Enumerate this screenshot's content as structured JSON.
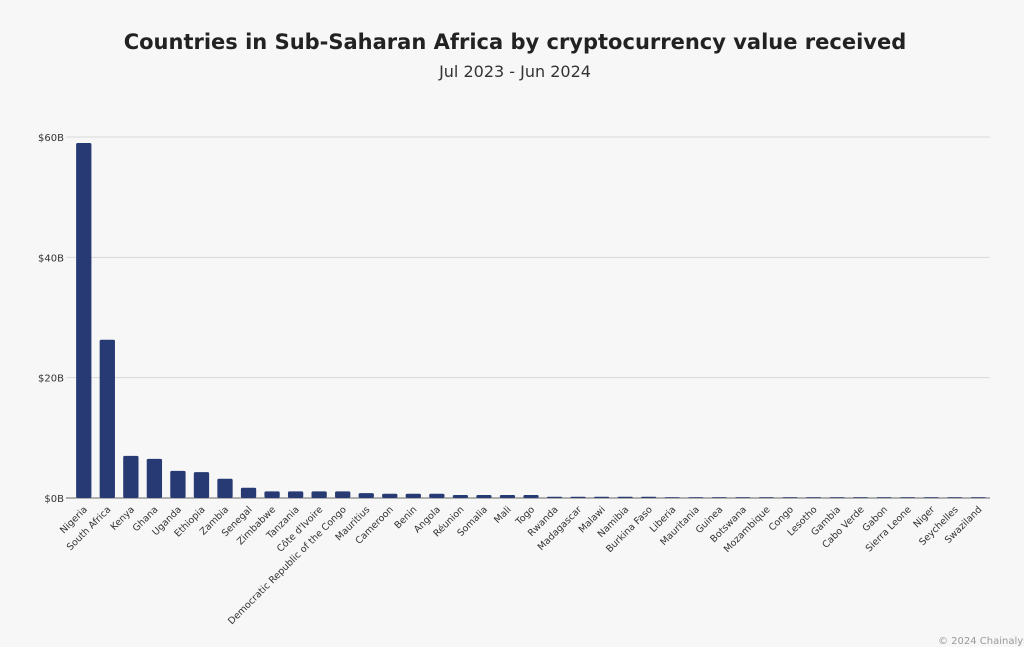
{
  "chart_data": {
    "type": "bar",
    "title": "Countries in Sub-Saharan Africa by cryptocurrency value received",
    "subtitle": "Jul 2023 - Jun 2024",
    "xlabel": "",
    "ylabel": "",
    "ylim": [
      0,
      60
    ],
    "yticks": [
      0,
      20,
      40,
      60
    ],
    "ytick_labels": [
      "$0B",
      "$20B",
      "$40B",
      "$60B"
    ],
    "grid": true,
    "bar_color": "#283a73",
    "categories": [
      "Nigeria",
      "South Africa",
      "Kenya",
      "Ghana",
      "Uganda",
      "Ethiopia",
      "Zambia",
      "Senegal",
      "Zimbabwe",
      "Tanzania",
      "Côte d'Ivoire",
      "Democratic Republic of the Congo",
      "Mauritius",
      "Cameroon",
      "Benin",
      "Angola",
      "Réunion",
      "Somalia",
      "Mali",
      "Togo",
      "Rwanda",
      "Madagascar",
      "Malawi",
      "Namibia",
      "Burkina Faso",
      "Liberia",
      "Mauritania",
      "Guinea",
      "Botswana",
      "Mozambique",
      "Congo",
      "Lesotho",
      "Gambia",
      "Cabo Verde",
      "Gabon",
      "Sierra Leone",
      "Niger",
      "Seychelles",
      "Swaziland"
    ],
    "values": [
      59.0,
      26.3,
      7.0,
      6.5,
      4.5,
      4.3,
      3.2,
      1.7,
      1.1,
      1.1,
      1.1,
      1.1,
      0.8,
      0.7,
      0.7,
      0.7,
      0.5,
      0.5,
      0.5,
      0.5,
      0.2,
      0.2,
      0.2,
      0.2,
      0.2,
      0.05,
      0.03,
      0.03,
      0.03,
      0.03,
      0.03,
      0.03,
      0.03,
      0.03,
      0.03,
      0.03,
      0.03,
      0.03,
      0.03
    ]
  },
  "footer": {
    "copyright": "© 2024 Chainalysis"
  }
}
